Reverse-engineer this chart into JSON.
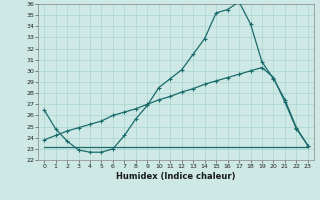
{
  "xlabel": "Humidex (Indice chaleur)",
  "xlim": [
    -0.5,
    23.5
  ],
  "ylim": [
    22,
    36
  ],
  "xticks": [
    0,
    1,
    2,
    3,
    4,
    5,
    6,
    7,
    8,
    9,
    10,
    11,
    12,
    13,
    14,
    15,
    16,
    17,
    18,
    19,
    20,
    21,
    22,
    23
  ],
  "yticks": [
    22,
    23,
    24,
    25,
    26,
    27,
    28,
    29,
    30,
    31,
    32,
    33,
    34,
    35,
    36
  ],
  "bg_color": "#cde8e5",
  "grid_color": "#b0d8d4",
  "line_color": "#1a6b6b",
  "curve1_x": [
    0,
    1,
    2,
    3,
    4,
    5,
    6,
    7,
    8,
    9,
    10,
    11,
    12,
    13,
    14,
    15,
    16,
    17,
    18,
    19,
    20,
    21,
    22,
    23
  ],
  "curve1_y": [
    26.5,
    24.8,
    23.7,
    22.9,
    22.7,
    22.7,
    23.0,
    24.2,
    25.7,
    26.9,
    28.5,
    29.3,
    30.1,
    31.5,
    32.9,
    35.2,
    35.5,
    36.2,
    34.2,
    30.8,
    29.3,
    27.4,
    24.9,
    23.3
  ],
  "curve2_x": [
    0,
    1,
    2,
    3,
    4,
    5,
    6,
    7,
    8,
    9,
    10,
    11,
    12,
    13,
    14,
    15,
    16,
    17,
    18,
    19,
    20,
    21,
    22,
    23
  ],
  "curve2_y": [
    23.2,
    23.2,
    23.2,
    23.2,
    23.2,
    23.2,
    23.2,
    23.2,
    23.2,
    23.2,
    23.2,
    23.2,
    23.2,
    23.2,
    23.2,
    23.2,
    23.2,
    23.2,
    23.2,
    23.2,
    23.2,
    23.2,
    23.2,
    23.2
  ],
  "curve3_x": [
    0,
    1,
    2,
    3,
    4,
    5,
    6,
    7,
    8,
    9,
    10,
    11,
    12,
    13,
    14,
    15,
    16,
    17,
    18,
    19,
    20,
    21,
    22,
    23
  ],
  "curve3_y": [
    23.8,
    24.2,
    24.6,
    24.9,
    25.2,
    25.5,
    26.0,
    26.3,
    26.6,
    27.0,
    27.4,
    27.7,
    28.1,
    28.4,
    28.8,
    29.1,
    29.4,
    29.7,
    30.0,
    30.3,
    29.4,
    27.2,
    24.8,
    23.3
  ]
}
